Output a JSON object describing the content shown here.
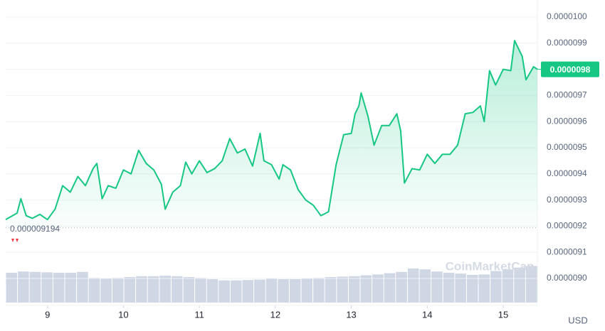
{
  "chart_data": {
    "type": "line",
    "color": "#16c784",
    "x": [
      8.45,
      8.6,
      8.65,
      8.72,
      8.8,
      8.9,
      9.0,
      9.1,
      9.2,
      9.3,
      9.4,
      9.5,
      9.6,
      9.65,
      9.72,
      9.8,
      9.9,
      10.0,
      10.1,
      10.2,
      10.3,
      10.4,
      10.5,
      10.55,
      10.65,
      10.75,
      10.82,
      10.9,
      11.0,
      11.1,
      11.2,
      11.3,
      11.4,
      11.5,
      11.6,
      11.7,
      11.8,
      11.85,
      11.95,
      12.05,
      12.1,
      12.2,
      12.3,
      12.4,
      12.5,
      12.6,
      12.7,
      12.8,
      12.9,
      13.0,
      13.05,
      13.1,
      13.13,
      13.22,
      13.3,
      13.4,
      13.5,
      13.6,
      13.65,
      13.7,
      13.8,
      13.9,
      14.0,
      14.1,
      14.2,
      14.3,
      14.4,
      14.5,
      14.6,
      14.7,
      14.75,
      14.82,
      14.9,
      15.0,
      15.1,
      15.15,
      15.25,
      15.3,
      15.4,
      15.45
    ],
    "values": [
      9.225e-06,
      9.25e-06,
      9.305e-06,
      9.24e-06,
      9.23e-06,
      9.245e-06,
      9.225e-06,
      9.265e-06,
      9.355e-06,
      9.33e-06,
      9.39e-06,
      9.355e-06,
      9.42e-06,
      9.44e-06,
      9.305e-06,
      9.355e-06,
      9.345e-06,
      9.415e-06,
      9.4e-06,
      9.49e-06,
      9.44e-06,
      9.415e-06,
      9.36e-06,
      9.265e-06,
      9.33e-06,
      9.355e-06,
      9.445e-06,
      9.4e-06,
      9.45e-06,
      9.405e-06,
      9.42e-06,
      9.45e-06,
      9.535e-06,
      9.48e-06,
      9.495e-06,
      9.43e-06,
      9.555e-06,
      9.45e-06,
      9.435e-06,
      9.38e-06,
      9.435e-06,
      9.415e-06,
      9.34e-06,
      9.3e-06,
      9.28e-06,
      9.24e-06,
      9.255e-06,
      9.435e-06,
      9.55e-06,
      9.555e-06,
      9.63e-06,
      9.66e-06,
      9.71e-06,
      9.62e-06,
      9.51e-06,
      9.585e-06,
      9.585e-06,
      9.63e-06,
      9.565e-06,
      9.365e-06,
      9.42e-06,
      9.415e-06,
      9.475e-06,
      9.44e-06,
      9.475e-06,
      9.475e-06,
      9.51e-06,
      9.63e-06,
      9.635e-06,
      9.66e-06,
      9.6e-06,
      9.795e-06,
      9.74e-06,
      9.8e-06,
      9.795e-06,
      9.91e-06,
      9.85e-06,
      9.76e-06,
      9.81e-06,
      9.8e-06
    ],
    "xlim": [
      8.45,
      15.45
    ],
    "xticks": [
      9,
      10,
      11,
      12,
      13,
      14,
      15
    ],
    "ylim": [
      8.97e-06,
      1.004e-05
    ],
    "yticks": [
      {
        "value": 9e-06,
        "label": "0.0000090"
      },
      {
        "value": 9.1e-06,
        "label": "0.0000091"
      },
      {
        "value": 9.2e-06,
        "label": "0.0000092"
      },
      {
        "value": 9.3e-06,
        "label": "0.0000093"
      },
      {
        "value": 9.4e-06,
        "label": "0.0000094"
      },
      {
        "value": 9.5e-06,
        "label": "0.0000095"
      },
      {
        "value": 9.6e-06,
        "label": "0.0000096"
      },
      {
        "value": 9.7e-06,
        "label": "0.0000097"
      },
      {
        "value": 9.8e-06,
        "label": "0.0000098"
      },
      {
        "value": 9.9e-06,
        "label": "0.0000099"
      },
      {
        "value": 1e-05,
        "label": "0.0000100"
      }
    ],
    "grid": true,
    "low": 9.194e-06,
    "last_price": 9.8e-06,
    "currency": "USD",
    "watermark": "CoinMarketCap",
    "volume": {
      "color": "#cfd6e4",
      "ylim": [
        0,
        100
      ],
      "values": [
        70,
        73,
        72,
        71,
        70,
        70,
        72,
        58,
        57,
        58,
        60,
        62,
        62,
        63,
        62,
        60,
        58,
        55,
        52,
        52,
        53,
        54,
        56,
        55,
        55,
        56,
        58,
        60,
        61,
        62,
        64,
        66,
        69,
        72,
        80,
        78,
        73,
        70,
        68,
        65,
        66,
        74,
        78,
        82,
        86
      ]
    }
  }
}
